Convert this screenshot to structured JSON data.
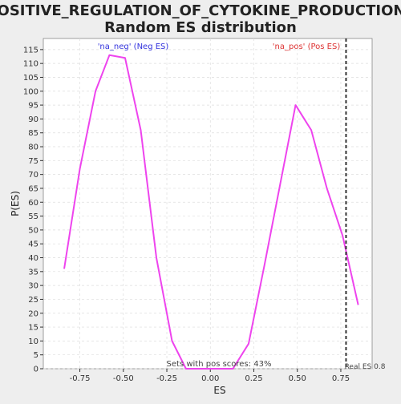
{
  "chart_data": {
    "type": "line",
    "title_line1": "POSITIVE_REGULATION_OF_CYTOKINE_PRODUCTION:",
    "title_line2": "Random ES distribution",
    "xlabel": "ES",
    "ylabel": "P(ES)",
    "xlim": [
      -0.96,
      0.93
    ],
    "ylim": [
      0,
      119
    ],
    "x_ticks": [
      -0.75,
      -0.5,
      -0.25,
      0.0,
      0.25,
      0.5,
      0.75
    ],
    "x_tick_labels": [
      "-0.75",
      "-0.50",
      "-0.25",
      "0.00",
      "0.25",
      "0.50",
      "0.75"
    ],
    "y_ticks": [
      0,
      5,
      10,
      15,
      20,
      25,
      30,
      35,
      40,
      45,
      50,
      55,
      60,
      65,
      70,
      75,
      80,
      85,
      90,
      95,
      100,
      105,
      110,
      115
    ],
    "grid": true,
    "series": [
      {
        "color": "#ee44ee",
        "x": [
          -0.84,
          -0.75,
          -0.66,
          -0.58,
          -0.49,
          -0.4,
          -0.31,
          -0.22,
          -0.14,
          -0.05,
          0.04,
          0.13,
          0.22,
          0.31,
          0.4,
          0.49,
          0.58,
          0.67,
          0.76,
          0.85
        ],
        "y": [
          36,
          72,
          100,
          113,
          112,
          86,
          40,
          10,
          0,
          0,
          0,
          0,
          9,
          37,
          66,
          95,
          86,
          65,
          48,
          23
        ]
      }
    ],
    "annotations": {
      "neg_label": "'na_neg' (Neg ES)",
      "neg_color": "#3333dd",
      "pos_label": "'na_pos' (Pos ES)",
      "pos_color": "#dd3333",
      "pos_scores_text": "Sets with pos scores: 43%",
      "real_es_label": "Real ES 0.8",
      "real_es_value": 0.78
    },
    "colors": {
      "plot_bg": "#ffffff",
      "page_bg": "#eeeeee",
      "grid": "#dddddd",
      "axis": "#333333"
    }
  }
}
